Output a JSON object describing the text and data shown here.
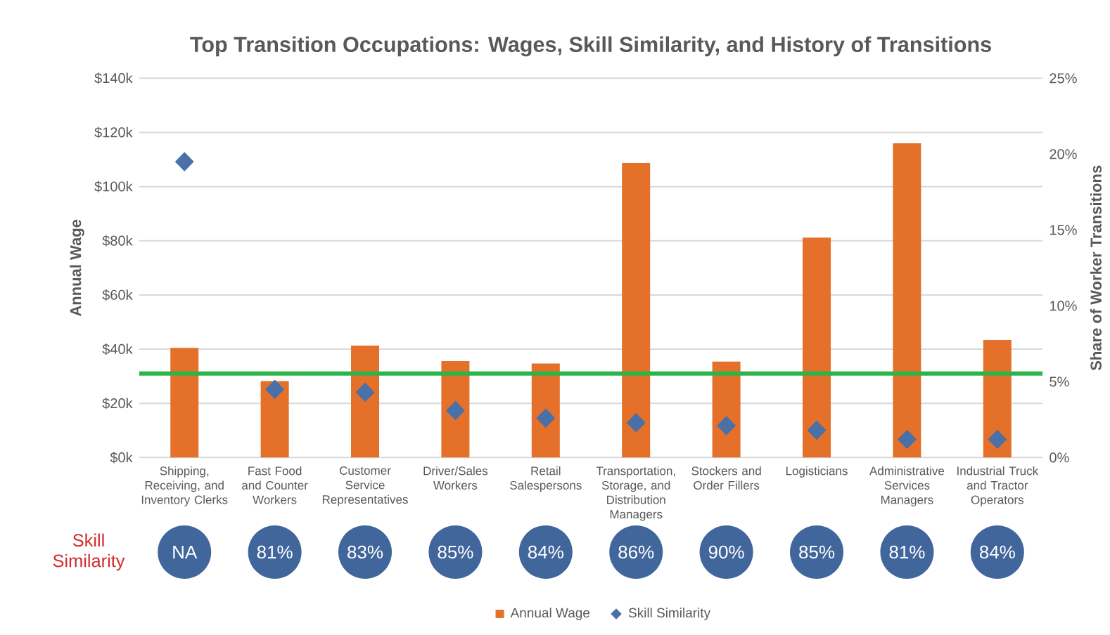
{
  "chart_data": {
    "type": "bar",
    "title": "Top Transition Occupations: Wages, Skill Similarity, and History of Transitions",
    "ylabel": "Annual Wage",
    "y2label": "Share of Worker Transitions",
    "categories": [
      "Shipping, Receiving, and Inventory Clerks",
      "Fast Food and Counter Workers",
      "Customer Service Representatives",
      "Driver/Sales Workers",
      "Retail Salespersons",
      "Transportation, Storage, and Distribution Managers",
      "Stockers and Order Fillers",
      "Logisticians",
      "Administrative Services Managers",
      "Industrial Truck and Tractor Operators"
    ],
    "series": [
      {
        "name": "Annual Wage",
        "color": "#e4702a",
        "values": [
          40.5,
          28.2,
          41.3,
          35.6,
          34.7,
          108.7,
          35.4,
          81.2,
          116,
          43.4
        ]
      },
      {
        "name": "Skill Similarity",
        "type": "scatter",
        "axis": "y2",
        "color": "#4a70a8",
        "marker": "diamond",
        "values": [
          19.5,
          4.5,
          4.3,
          3.1,
          2.6,
          2.3,
          2.1,
          1.8,
          1.2,
          1.2
        ]
      }
    ],
    "ylim": [
      0,
      140
    ],
    "yticks": [
      {
        "value": 0,
        "label": "$0k"
      },
      {
        "value": 20,
        "label": "$20k"
      },
      {
        "value": 40,
        "label": "$40k"
      },
      {
        "value": 60,
        "label": "$60k"
      },
      {
        "value": 80,
        "label": "$80k"
      },
      {
        "value": 100,
        "label": "$100k"
      },
      {
        "value": 120,
        "label": "$120k"
      },
      {
        "value": 140,
        "label": "$140k"
      }
    ],
    "y2lim": [
      0,
      25
    ],
    "y2ticks": [
      {
        "value": 0,
        "label": "0%"
      },
      {
        "value": 5,
        "label": "5%"
      },
      {
        "value": 10,
        "label": "10%"
      },
      {
        "value": 15,
        "label": "15%"
      },
      {
        "value": 20,
        "label": "20%"
      },
      {
        "value": 25,
        "label": "25%"
      }
    ],
    "ref_lines": [
      {
        "axis": "y",
        "value": 31,
        "color": "#2cb34a"
      }
    ],
    "annotations": [
      "Skill Similarity",
      "NA",
      "81%",
      "83%",
      "85%",
      "84%",
      "86%",
      "90%",
      "85%",
      "81%",
      "84%"
    ],
    "grid": "y",
    "legend": "bottom"
  }
}
